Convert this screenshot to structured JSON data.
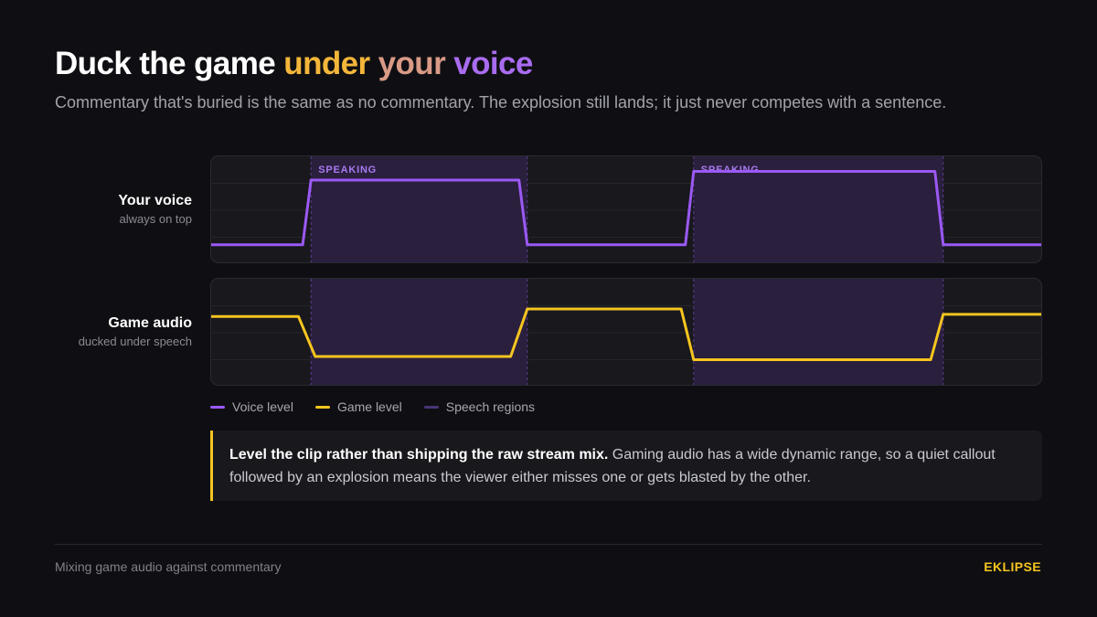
{
  "header": {
    "title_main": "Duck the game",
    "title_words": [
      "under",
      "your",
      "voice"
    ],
    "subtitle": "Commentary that's buried is the same as no commentary. The explosion still lands; it just never competes with a sentence."
  },
  "rows": {
    "voice": {
      "name": "Your voice",
      "sub": "always on top"
    },
    "game": {
      "name": "Game audio",
      "sub": "ducked under speech"
    }
  },
  "speech_label": "SPEAKING",
  "legend": {
    "voice": "Voice level",
    "game": "Game level",
    "regions": "Speech regions"
  },
  "callout": {
    "bold": "Level the clip rather than shipping the raw stream mix.",
    "text": "Gaming audio has a wide dynamic range, so a quiet callout followed by an explosion means the viewer either misses one or gets blasted by the other."
  },
  "footer": {
    "left": "Mixing game audio against commentary",
    "brand": "EKLIPSE"
  },
  "colors": {
    "voice": "#9b59f5",
    "game": "#f5c51f",
    "region_fill": "#2a1f3d",
    "region_line": "#5a3e91",
    "label": "#a87af0"
  },
  "chart_data": {
    "type": "line",
    "x_domain": [
      0,
      100
    ],
    "level_domain": [
      0,
      100
    ],
    "speech_regions": [
      [
        12,
        38
      ],
      [
        58,
        88
      ]
    ],
    "series": [
      {
        "name": "Voice level",
        "points": [
          [
            0,
            18
          ],
          [
            11,
            18
          ],
          [
            12,
            78
          ],
          [
            37,
            78
          ],
          [
            38,
            18
          ],
          [
            57,
            18
          ],
          [
            58,
            86
          ],
          [
            87,
            86
          ],
          [
            88,
            18
          ],
          [
            100,
            18
          ]
        ]
      },
      {
        "name": "Game level",
        "points": [
          [
            0,
            65
          ],
          [
            10.5,
            65
          ],
          [
            12.5,
            28
          ],
          [
            36,
            28
          ],
          [
            38,
            72
          ],
          [
            56.5,
            72
          ],
          [
            58,
            25
          ],
          [
            86.5,
            25
          ],
          [
            88,
            67
          ],
          [
            100,
            67
          ]
        ]
      }
    ]
  }
}
